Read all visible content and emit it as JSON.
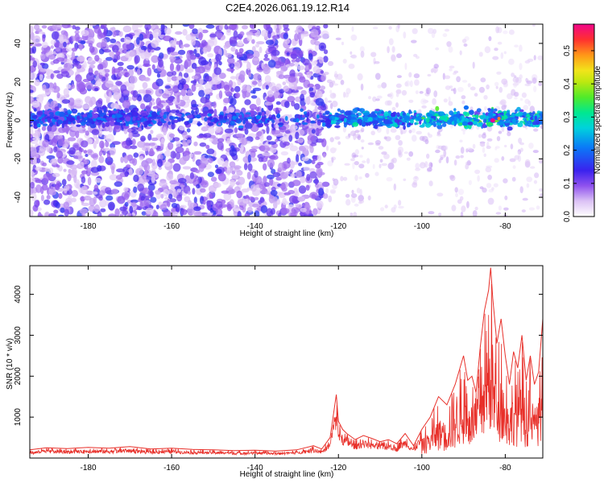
{
  "figure": {
    "title": "C2E4.2026.061.19.12.R14"
  },
  "chart_data": [
    {
      "type": "heatmap",
      "name": "spectrogram",
      "xlabel": "Height of straight line (km)",
      "ylabel": "Frequency (Hz)",
      "xlim": [
        -194,
        -71
      ],
      "ylim": [
        -50,
        50
      ],
      "xticks": [
        -180,
        -160,
        -140,
        -120,
        -100,
        -80
      ],
      "yticks": [
        -40,
        -20,
        0,
        20,
        40
      ],
      "colorbar": {
        "label": "Normalized spectral amplitude",
        "range": [
          0,
          0.58
        ],
        "ticks": [
          0.0,
          0.1,
          0.2,
          0.3,
          0.4,
          0.5
        ]
      },
      "features": {
        "broadband_noise_until_km": -123,
        "band_center_hz": 1,
        "band_halfwidth_hz": 6,
        "peak_amplitude": 0.58,
        "peak_at_km": -83
      }
    },
    {
      "type": "line",
      "name": "snr",
      "xlabel": "Height of straight line (km)",
      "ylabel": "SNR (10 * v/v)",
      "xlim": [
        -194,
        -71
      ],
      "ylim": [
        0,
        4700
      ],
      "xticks": [
        -180,
        -160,
        -140,
        -120,
        -100,
        -80
      ],
      "yticks": [
        1000,
        2000,
        3000,
        4000
      ],
      "color": "#e8302a",
      "series": [
        {
          "name": "SNR",
          "x": [
            -194,
            -190,
            -185,
            -180,
            -175,
            -170,
            -165,
            -160,
            -155,
            -150,
            -145,
            -140,
            -135,
            -130,
            -126,
            -124,
            -122,
            -120.5,
            -120,
            -119,
            -118,
            -116,
            -114,
            -112,
            -110,
            -108,
            -106,
            -104,
            -102,
            -100,
            -98,
            -96,
            -94,
            -92,
            -90,
            -89,
            -88,
            -87,
            -86,
            -85,
            -84,
            -83.5,
            -83,
            -82,
            -81,
            -80,
            -79,
            -78,
            -77,
            -76,
            -75,
            -74,
            -73,
            -72,
            -71
          ],
          "y": [
            200,
            250,
            230,
            260,
            240,
            280,
            220,
            240,
            210,
            200,
            180,
            190,
            170,
            200,
            300,
            220,
            500,
            1550,
            900,
            700,
            600,
            450,
            550,
            480,
            400,
            450,
            350,
            600,
            300,
            700,
            1000,
            1500,
            1300,
            1800,
            2500,
            1900,
            2000,
            1600,
            2700,
            3600,
            4100,
            4650,
            3900,
            2800,
            3400,
            2500,
            1800,
            2600,
            2200,
            3000,
            1900,
            2500,
            1800,
            2100,
            3400
          ]
        }
      ]
    }
  ]
}
